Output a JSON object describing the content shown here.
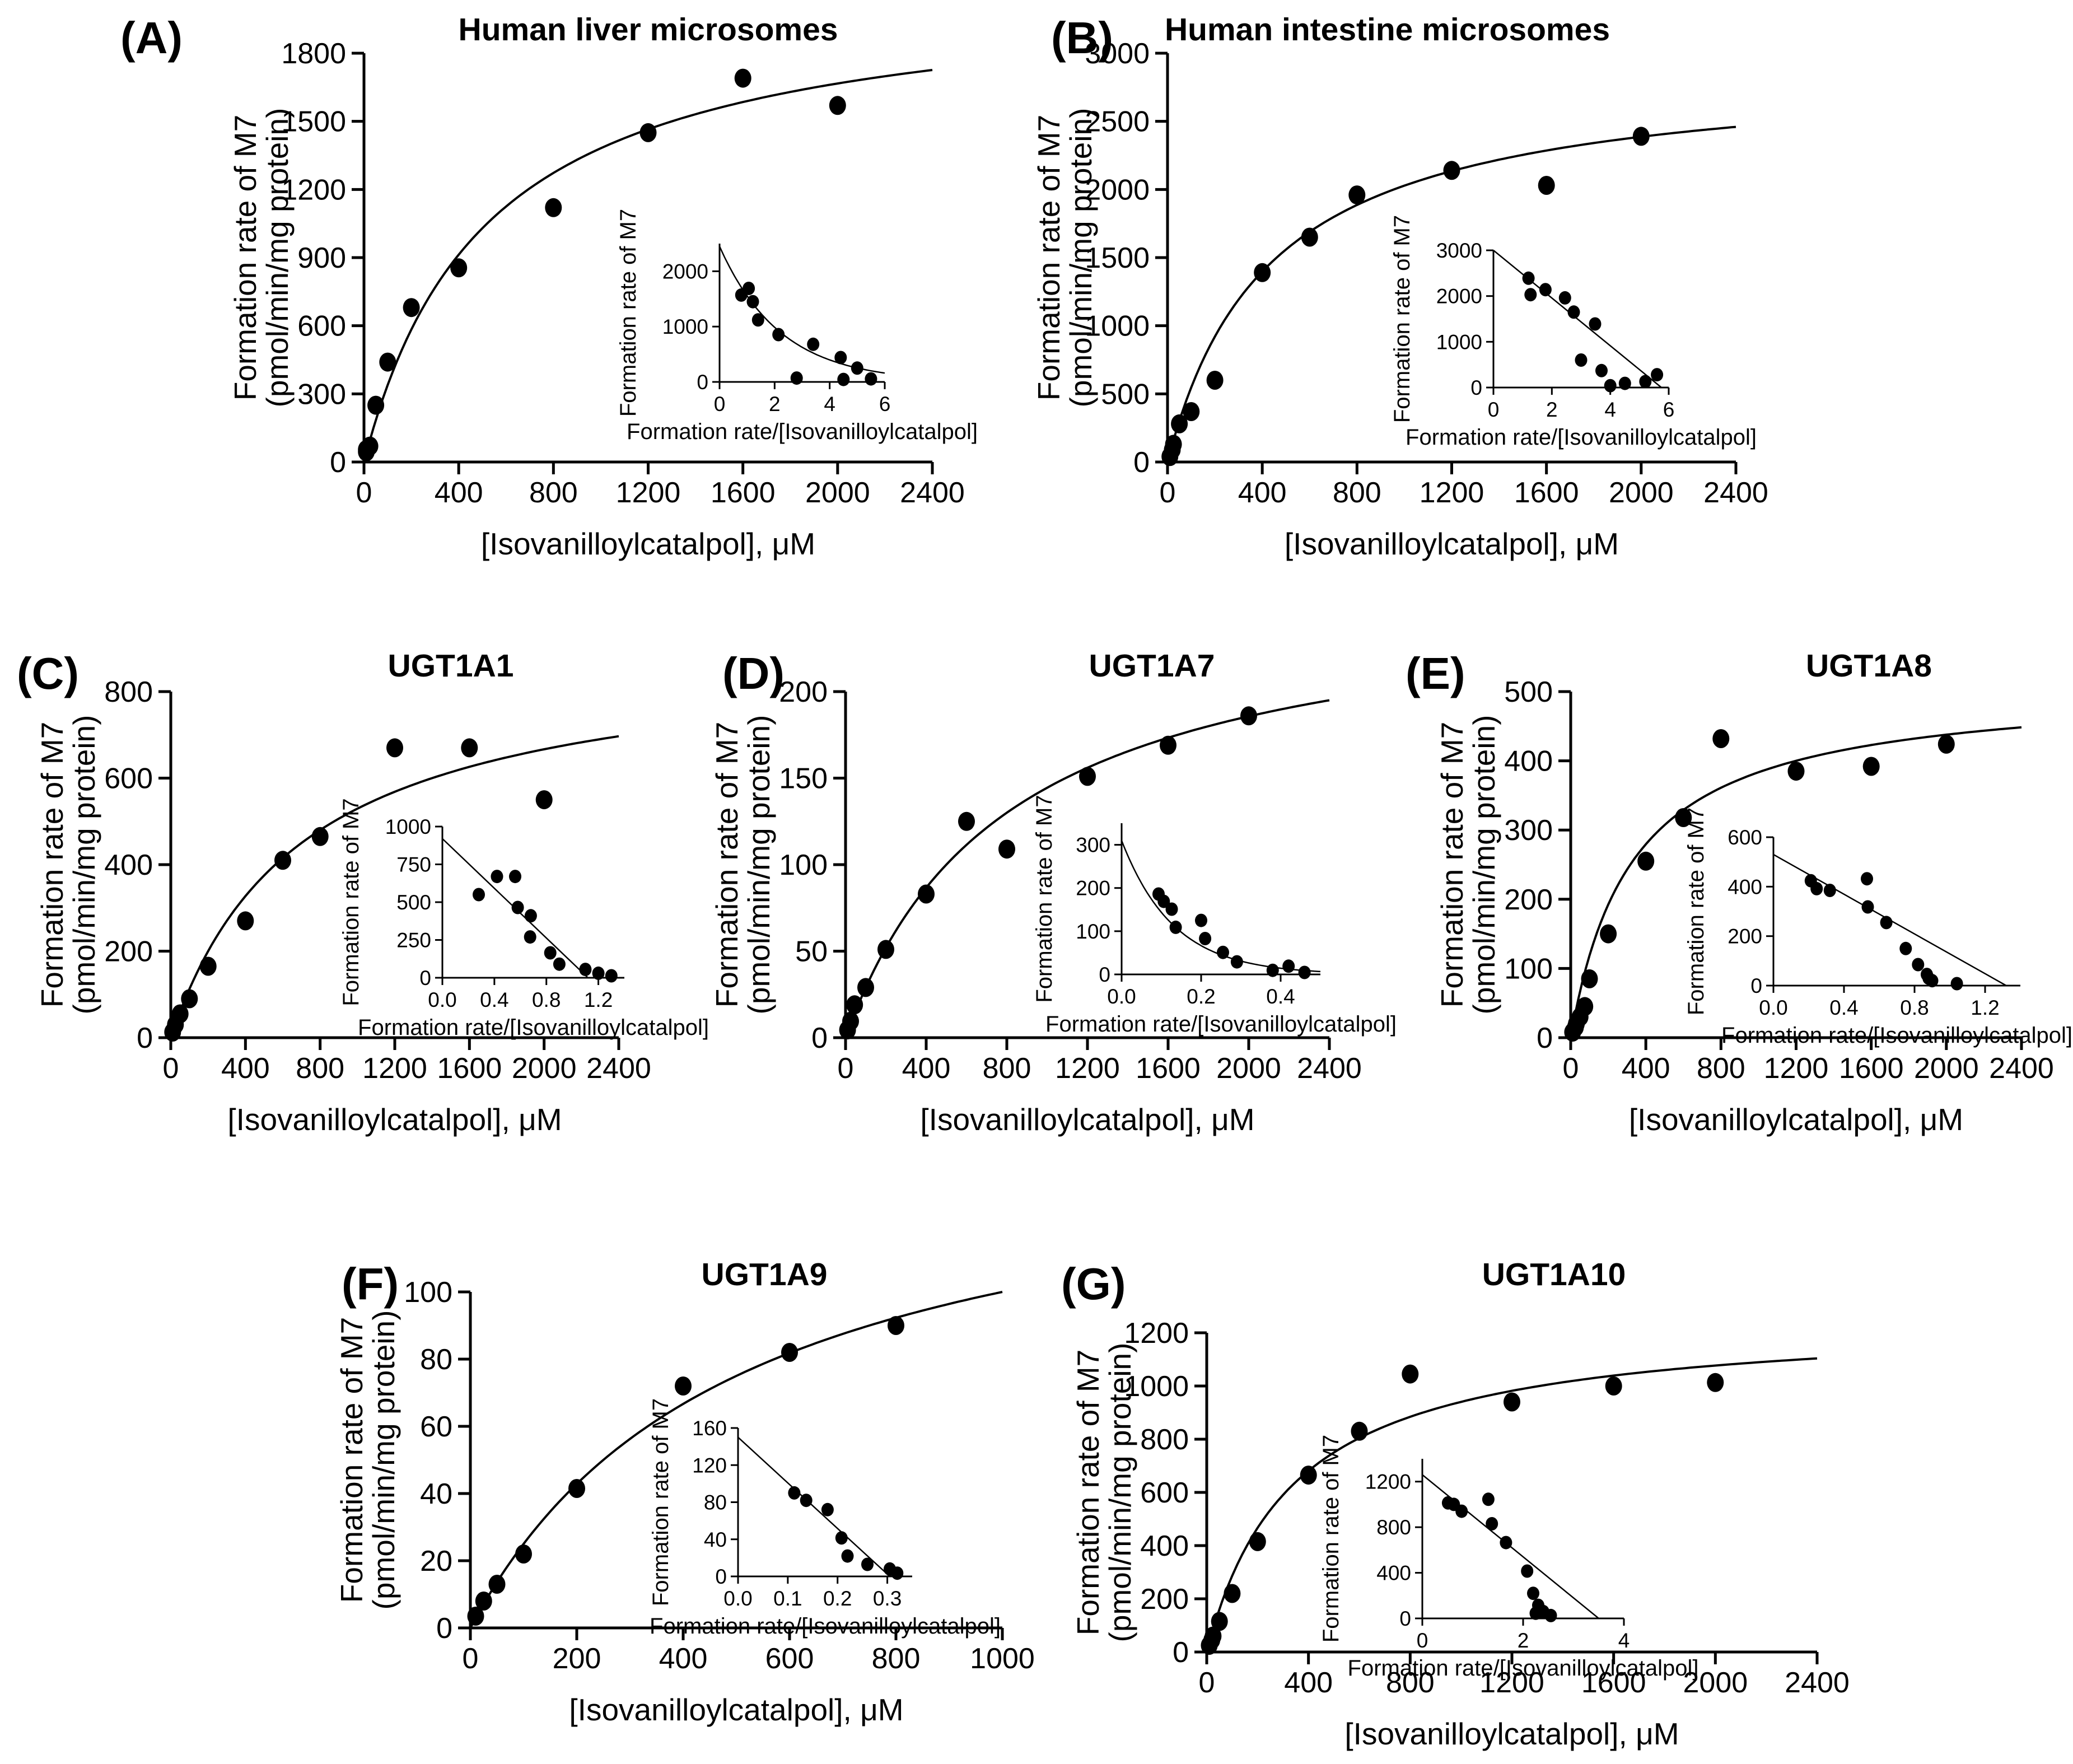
{
  "figure": {
    "xlabel": "[Isovanilloylcatalpol], μM",
    "xlabel_f": "[Isovanilloylcatalpol], μM",
    "ylabel_line1": "Formation rate of M7",
    "ylabel_line2": "(pmol/min/mg protein)",
    "inset_xlabel": "Formation rate/[Isovanilloylcatalpol]",
    "inset_ylabel": "Formation rate of M7",
    "colors": {
      "marker": "#000000",
      "line": "#000000",
      "background": "#ffffff"
    }
  },
  "chart_data": [
    {
      "id": "A",
      "label": "(A)",
      "title": "Human liver microsomes",
      "type": "scatter",
      "main": {
        "xlim": [
          0,
          2400
        ],
        "ylim": [
          0,
          1800
        ],
        "xticks": [
          "0",
          "400",
          "800",
          "1200",
          "1600",
          "2000",
          "2400"
        ],
        "yticks": [
          "0",
          "300",
          "600",
          "900",
          "1200",
          "1500",
          "1800"
        ],
        "grid": false,
        "fit": {
          "model": "michaelis-menten",
          "vmax": 2100,
          "km": 520
        },
        "points": [
          [
            10,
            45
          ],
          [
            10,
            55
          ],
          [
            25,
            70
          ],
          [
            50,
            250
          ],
          [
            100,
            440
          ],
          [
            200,
            680
          ],
          [
            400,
            855
          ],
          [
            800,
            1120
          ],
          [
            1200,
            1450
          ],
          [
            1600,
            1690
          ],
          [
            2000,
            1570
          ]
        ]
      },
      "inset": {
        "xlim": [
          0,
          6
        ],
        "ylim": [
          0,
          2500
        ],
        "xticks": [
          "0",
          "2",
          "4",
          "6"
        ],
        "yticks": [
          "0",
          "1000",
          "2000"
        ],
        "line": {
          "type": "exp",
          "a": 2450,
          "tau": 2.2
        },
        "points": [
          [
            0.79,
            1570
          ],
          [
            1.06,
            1690
          ],
          [
            1.21,
            1450
          ],
          [
            1.4,
            1120
          ],
          [
            2.14,
            855
          ],
          [
            2.8,
            70
          ],
          [
            3.4,
            680
          ],
          [
            4.4,
            440
          ],
          [
            4.5,
            45
          ],
          [
            5.0,
            250
          ],
          [
            5.5,
            55
          ]
        ]
      }
    },
    {
      "id": "B",
      "label": "(B)",
      "title": "Human intestine microsomes",
      "type": "scatter",
      "main": {
        "xlim": [
          0,
          2400
        ],
        "ylim": [
          0,
          3000
        ],
        "xticks": [
          "0",
          "400",
          "800",
          "1200",
          "1600",
          "2000",
          "2400"
        ],
        "yticks": [
          "0",
          "500",
          "1000",
          "1500",
          "2000",
          "2500",
          "3000"
        ],
        "grid": false,
        "fit": {
          "model": "michaelis-menten",
          "vmax": 2900,
          "km": 430
        },
        "points": [
          [
            10,
            40
          ],
          [
            20,
            90
          ],
          [
            25,
            130
          ],
          [
            50,
            280
          ],
          [
            100,
            370
          ],
          [
            200,
            600
          ],
          [
            400,
            1390
          ],
          [
            600,
            1650
          ],
          [
            800,
            1960
          ],
          [
            1200,
            2140
          ],
          [
            1600,
            2030
          ],
          [
            2000,
            2390
          ]
        ]
      },
      "inset": {
        "xlim": [
          0,
          6
        ],
        "ylim": [
          0,
          3000
        ],
        "xticks": [
          "0",
          "2",
          "4",
          "6"
        ],
        "yticks": [
          "0",
          "1000",
          "2000",
          "3000"
        ],
        "line": {
          "type": "linear",
          "x1": 0,
          "y1": 3000,
          "x2": 5.75,
          "y2": 0
        },
        "points": [
          [
            1.2,
            2390
          ],
          [
            1.27,
            2030
          ],
          [
            1.78,
            2140
          ],
          [
            2.45,
            1960
          ],
          [
            2.75,
            1650
          ],
          [
            3.0,
            600
          ],
          [
            3.48,
            1390
          ],
          [
            3.7,
            370
          ],
          [
            4.0,
            40
          ],
          [
            4.5,
            90
          ],
          [
            5.2,
            130
          ],
          [
            5.6,
            280
          ]
        ]
      }
    },
    {
      "id": "C",
      "label": "(C)",
      "title": "UGT1A1",
      "type": "scatter",
      "main": {
        "xlim": [
          0,
          2400
        ],
        "ylim": [
          0,
          800
        ],
        "xticks": [
          "0",
          "400",
          "800",
          "1200",
          "1600",
          "2000",
          "2400"
        ],
        "yticks": [
          "0",
          "200",
          "400",
          "600",
          "800"
        ],
        "grid": false,
        "fit": {
          "model": "michaelis-menten",
          "vmax": 900,
          "km": 700
        },
        "points": [
          [
            10,
            13
          ],
          [
            25,
            30
          ],
          [
            50,
            55
          ],
          [
            100,
            90
          ],
          [
            200,
            165
          ],
          [
            400,
            270
          ],
          [
            600,
            410
          ],
          [
            800,
            465
          ],
          [
            1200,
            670
          ],
          [
            1600,
            670
          ],
          [
            2000,
            550
          ]
        ]
      },
      "inset": {
        "xlim": [
          0,
          1.4
        ],
        "ylim": [
          0,
          1000
        ],
        "xticks": [
          "0.0",
          "0.4",
          "0.8",
          "1.2"
        ],
        "yticks": [
          "0",
          "250",
          "500",
          "750",
          "1000"
        ],
        "line": {
          "type": "linear",
          "x1": 0,
          "y1": 920,
          "x2": 1.12,
          "y2": 0
        },
        "points": [
          [
            0.28,
            550
          ],
          [
            0.42,
            670
          ],
          [
            0.56,
            670
          ],
          [
            0.58,
            465
          ],
          [
            0.675,
            270
          ],
          [
            0.68,
            410
          ],
          [
            0.83,
            165
          ],
          [
            0.9,
            90
          ],
          [
            1.1,
            55
          ],
          [
            1.2,
            30
          ],
          [
            1.3,
            13
          ]
        ]
      }
    },
    {
      "id": "D",
      "label": "(D)",
      "title": "UGT1A7",
      "type": "scatter",
      "main": {
        "xlim": [
          0,
          2400
        ],
        "ylim": [
          0,
          200
        ],
        "xticks": [
          "0",
          "400",
          "800",
          "1200",
          "1600",
          "2000",
          "2400"
        ],
        "yticks": [
          "0",
          "50",
          "100",
          "150",
          "200"
        ],
        "grid": false,
        "fit": {
          "model": "michaelis-menten",
          "vmax": 260,
          "km": 800
        },
        "points": [
          [
            10,
            4.5
          ],
          [
            25,
            9.5
          ],
          [
            45,
            19
          ],
          [
            100,
            29
          ],
          [
            200,
            51
          ],
          [
            400,
            83
          ],
          [
            600,
            125
          ],
          [
            800,
            109
          ],
          [
            1200,
            151
          ],
          [
            1600,
            169
          ],
          [
            2000,
            186
          ]
        ]
      },
      "inset": {
        "xlim": [
          0,
          0.5
        ],
        "ylim": [
          0,
          350
        ],
        "xticks": [
          "0.0",
          "0.2",
          "0.4"
        ],
        "yticks": [
          "0",
          "100",
          "200",
          "300"
        ],
        "line": {
          "type": "exp",
          "a": 310,
          "tau": 0.13
        },
        "points": [
          [
            0.093,
            186
          ],
          [
            0.106,
            169
          ],
          [
            0.126,
            151
          ],
          [
            0.136,
            109
          ],
          [
            0.2,
            125
          ],
          [
            0.21,
            83
          ],
          [
            0.255,
            51
          ],
          [
            0.29,
            29
          ],
          [
            0.38,
            9.5
          ],
          [
            0.42,
            19
          ],
          [
            0.46,
            4.5
          ]
        ]
      }
    },
    {
      "id": "E",
      "label": "(E)",
      "title": "UGT1A8",
      "type": "scatter",
      "main": {
        "xlim": [
          0,
          2400
        ],
        "ylim": [
          0,
          500
        ],
        "xticks": [
          "0",
          "400",
          "800",
          "1200",
          "1600",
          "2000",
          "2400"
        ],
        "yticks": [
          "0",
          "100",
          "200",
          "300",
          "400",
          "500"
        ],
        "grid": false,
        "fit": {
          "model": "michaelis-menten",
          "vmax": 510,
          "km": 330
        },
        "points": [
          [
            10,
            8
          ],
          [
            25,
            15
          ],
          [
            30,
            20
          ],
          [
            50,
            30
          ],
          [
            75,
            45
          ],
          [
            100,
            85
          ],
          [
            200,
            150
          ],
          [
            400,
            255
          ],
          [
            600,
            318
          ],
          [
            800,
            432
          ],
          [
            1200,
            385
          ],
          [
            1600,
            392
          ],
          [
            2000,
            424
          ]
        ]
      },
      "inset": {
        "xlim": [
          0,
          1.4
        ],
        "ylim": [
          0,
          600
        ],
        "xticks": [
          "0.0",
          "0.4",
          "0.8",
          "1.2"
        ],
        "yticks": [
          "0",
          "200",
          "400",
          "600"
        ],
        "line": {
          "type": "linear",
          "x1": 0,
          "y1": 530,
          "x2": 1.32,
          "y2": 0
        },
        "points": [
          [
            0.212,
            424
          ],
          [
            0.245,
            392
          ],
          [
            0.32,
            385
          ],
          [
            0.53,
            432
          ],
          [
            0.535,
            318
          ],
          [
            0.64,
            255
          ],
          [
            0.75,
            150
          ],
          [
            0.82,
            85
          ],
          [
            0.87,
            45
          ],
          [
            0.88,
            30
          ],
          [
            0.9,
            20
          ],
          [
            1.04,
            8
          ]
        ]
      }
    },
    {
      "id": "F",
      "label": "(F)",
      "title": "UGT1A9",
      "type": "scatter",
      "main": {
        "xlim": [
          0,
          1000
        ],
        "ylim": [
          0,
          100
        ],
        "xticks": [
          "0",
          "200",
          "400",
          "600",
          "800",
          "1000"
        ],
        "yticks": [
          "0",
          "20",
          "40",
          "60",
          "80",
          "100"
        ],
        "grid": false,
        "fit": {
          "model": "michaelis-menten",
          "vmax": 150,
          "km": 500
        },
        "points": [
          [
            10,
            3.5
          ],
          [
            25,
            8
          ],
          [
            50,
            13
          ],
          [
            100,
            22
          ],
          [
            200,
            41.5
          ],
          [
            400,
            72
          ],
          [
            600,
            82
          ],
          [
            800,
            90
          ]
        ]
      },
      "inset": {
        "xlim": [
          0,
          0.35
        ],
        "ylim": [
          0,
          160
        ],
        "xticks": [
          "0.0",
          "0.1",
          "0.2",
          "0.3"
        ],
        "yticks": [
          "0",
          "40",
          "80",
          "120",
          "160"
        ],
        "line": {
          "type": "linear",
          "x1": 0,
          "y1": 150,
          "x2": 0.305,
          "y2": 0
        },
        "points": [
          [
            0.113,
            90
          ],
          [
            0.137,
            82
          ],
          [
            0.18,
            72
          ],
          [
            0.208,
            41.5
          ],
          [
            0.22,
            22
          ],
          [
            0.26,
            13
          ],
          [
            0.305,
            8
          ],
          [
            0.32,
            3.5
          ]
        ]
      }
    },
    {
      "id": "G",
      "label": "(G)",
      "title": "UGT1A10",
      "type": "scatter",
      "main": {
        "xlim": [
          0,
          2400
        ],
        "ylim": [
          0,
          1200
        ],
        "xticks": [
          "0",
          "400",
          "800",
          "1200",
          "1600",
          "2000",
          "2400"
        ],
        "yticks": [
          "0",
          "200",
          "400",
          "600",
          "800",
          "1000",
          "1200"
        ],
        "grid": false,
        "fit": {
          "model": "michaelis-menten",
          "vmax": 1260,
          "km": 340
        },
        "points": [
          [
            10,
            25
          ],
          [
            20,
            45
          ],
          [
            25,
            60
          ],
          [
            50,
            115
          ],
          [
            100,
            220
          ],
          [
            200,
            415
          ],
          [
            400,
            665
          ],
          [
            600,
            830
          ],
          [
            800,
            1045
          ],
          [
            1200,
            940
          ],
          [
            1600,
            1000
          ],
          [
            2000,
            1013
          ]
        ]
      },
      "inset": {
        "xlim": [
          0,
          4
        ],
        "ylim": [
          0,
          1400
        ],
        "xticks": [
          "0",
          "2",
          "4"
        ],
        "yticks": [
          "0",
          "400",
          "800",
          "1200"
        ],
        "line": {
          "type": "linear",
          "x1": 0,
          "y1": 1260,
          "x2": 3.5,
          "y2": 0
        },
        "points": [
          [
            0.51,
            1013
          ],
          [
            0.625,
            1000
          ],
          [
            0.78,
            940
          ],
          [
            1.31,
            1045
          ],
          [
            1.38,
            830
          ],
          [
            1.66,
            665
          ],
          [
            2.08,
            415
          ],
          [
            2.2,
            220
          ],
          [
            2.3,
            115
          ],
          [
            2.25,
            45
          ],
          [
            2.4,
            60
          ],
          [
            2.55,
            25
          ]
        ]
      }
    }
  ]
}
